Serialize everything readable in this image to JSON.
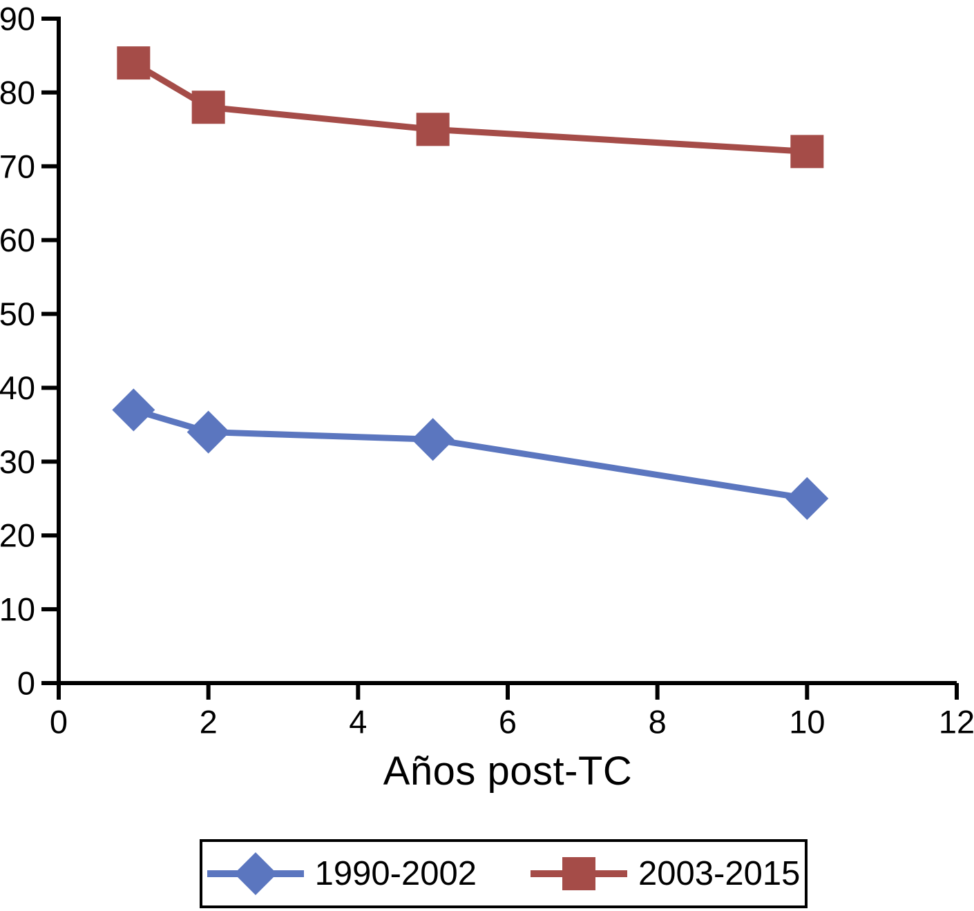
{
  "chart_data": {
    "type": "line",
    "title": "",
    "xlabel": "Años post-TC",
    "ylabel": "",
    "xlim": [
      0,
      12
    ],
    "ylim": [
      0,
      90
    ],
    "x_ticks": [
      0,
      2,
      4,
      6,
      8,
      10,
      12
    ],
    "y_ticks": [
      0,
      10,
      20,
      30,
      40,
      50,
      60,
      70,
      80,
      90
    ],
    "grid": false,
    "legend_position": "bottom",
    "axis_color": "#000000",
    "series": [
      {
        "name": "1990-2002",
        "color": "#5b76bf",
        "marker": "diamond",
        "x": [
          1,
          2,
          5,
          10
        ],
        "values": [
          37,
          34,
          33,
          25
        ]
      },
      {
        "name": "2003-2015",
        "color": "#a54c48",
        "marker": "square",
        "x": [
          1,
          2,
          5,
          10
        ],
        "values": [
          84,
          78,
          75,
          72
        ]
      }
    ]
  }
}
